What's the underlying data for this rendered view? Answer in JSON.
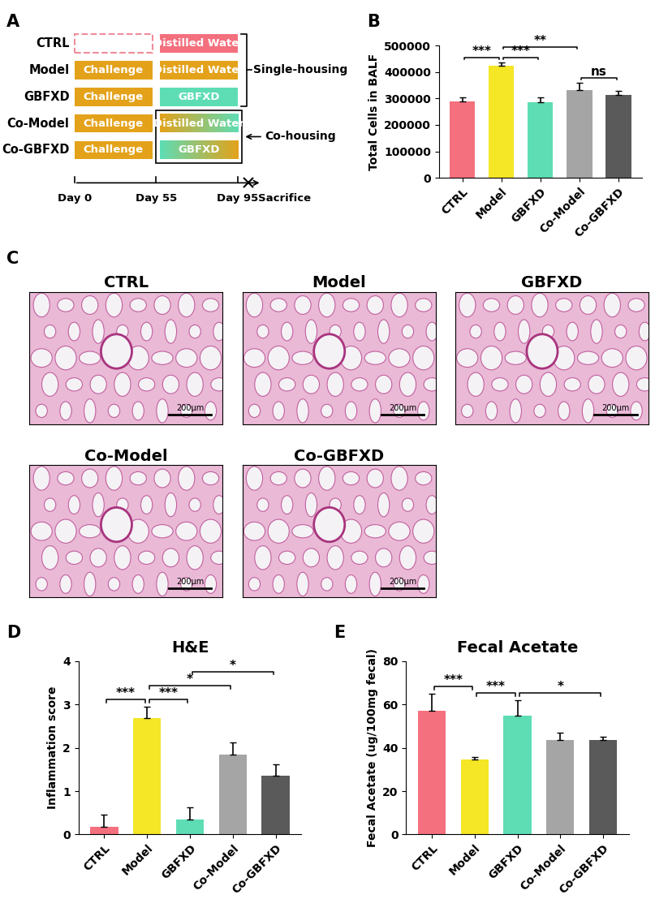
{
  "panels": [
    "A",
    "B",
    "C",
    "D",
    "E"
  ],
  "diagram": {
    "rows": [
      {
        "label": "CTRL",
        "phase1": {
          "color": "#F08C9A",
          "line_style": "dashed"
        },
        "phase2": {
          "text": "Distilled Water",
          "color": "#F4707E"
        }
      },
      {
        "label": "Model",
        "phase1": {
          "text": "Challenge",
          "color": "#E3A21A"
        },
        "phase2": {
          "text": "Distilled Water",
          "color": "#E3A21A"
        }
      },
      {
        "label": "GBFXD",
        "phase1": {
          "text": "Challenge",
          "color": "#E3A21A"
        },
        "phase2": {
          "text": "GBFXD",
          "color": "#5EDDB5"
        }
      },
      {
        "label": "Co-Model",
        "phase1": {
          "text": "Challenge",
          "color": "#E3A21A"
        },
        "phase2": {
          "text": "Distilled Water",
          "colors": [
            "#E3A21A",
            "#5EDDB5"
          ]
        }
      },
      {
        "label": "Co-GBFXD",
        "phase1": {
          "text": "Challenge",
          "color": "#E3A21A"
        },
        "phase2": {
          "text": "GBFXD",
          "colors": [
            "#5EDDB5",
            "#E3A21A"
          ]
        }
      }
    ],
    "single_housing": {
      "label": "Single-housing",
      "rows": [
        "CTRL",
        "Model",
        "GBFXD"
      ]
    },
    "co_housing": {
      "label": "Co-housing",
      "rows": [
        "Co-Model",
        "Co-GBFXD"
      ]
    },
    "timeline": {
      "ticks": [
        "Day 0",
        "Day 55",
        "Day 95"
      ],
      "end": "Sacrifice"
    }
  },
  "images": {
    "titles": [
      "CTRL",
      "Model",
      "GBFXD",
      "Co-Model",
      "Co-GBFXD"
    ],
    "scale_bar": "200μm"
  },
  "chart_data": [
    {
      "type": "bar",
      "y_label": "Total Cells in BALF",
      "categories": [
        "CTRL",
        "Model",
        "GBFXD",
        "Co-Model",
        "Co-GBFXD"
      ],
      "values": [
        288000,
        425000,
        285000,
        333000,
        313000
      ],
      "errors": [
        17000,
        10000,
        18000,
        25000,
        17000
      ],
      "colors": [
        "#F4707E",
        "#F5E626",
        "#5EDDB5",
        "#A5A5A5",
        "#5A5A5A"
      ],
      "ylim": [
        0,
        500000
      ],
      "yticks": [
        0,
        100000,
        200000,
        300000,
        400000,
        500000
      ],
      "significance": [
        {
          "from": "CTRL",
          "to": "Model",
          "label": "***"
        },
        {
          "from": "Model",
          "to": "GBFXD",
          "label": "***"
        },
        {
          "from": "Model",
          "to": "Co-Model",
          "label": "**"
        },
        {
          "from": "Co-Model",
          "to": "Co-GBFXD",
          "label": "ns"
        }
      ]
    },
    {
      "type": "bar",
      "title": "H&E",
      "y_label": "Inflammation score",
      "categories": [
        "CTRL",
        "Model",
        "GBFXD",
        "Co-Model",
        "Co-GBFXD"
      ],
      "values": [
        0.18,
        2.68,
        0.35,
        1.85,
        1.35
      ],
      "errors": [
        0.27,
        0.27,
        0.27,
        0.27,
        0.27
      ],
      "colors": [
        "#F4707E",
        "#F5E626",
        "#5EDDB5",
        "#A5A5A5",
        "#5A5A5A"
      ],
      "ylim": [
        0,
        4
      ],
      "yticks": [
        0,
        1,
        2,
        3,
        4
      ],
      "significance": [
        {
          "from": "CTRL",
          "to": "Model",
          "label": "***"
        },
        {
          "from": "Model",
          "to": "GBFXD",
          "label": "***"
        },
        {
          "from": "Model",
          "to": "Co-Model",
          "label": "*"
        },
        {
          "from": "GBFXD",
          "to": "Co-GBFXD",
          "label": "*"
        }
      ]
    },
    {
      "type": "bar",
      "title": "Fecal Acetate",
      "y_label": "Fecal Acetate (ug/100mg fecal)",
      "categories": [
        "CTRL",
        "Model",
        "GBFXD",
        "Co-Model",
        "Co-GBFXD"
      ],
      "values": [
        57,
        34.5,
        55,
        43.5,
        43.5
      ],
      "errors": [
        8,
        1.3,
        7,
        3.5,
        1.8
      ],
      "colors": [
        "#F4707E",
        "#F5E626",
        "#5EDDB5",
        "#A5A5A5",
        "#5A5A5A"
      ],
      "ylim": [
        0,
        80
      ],
      "yticks": [
        0,
        20,
        40,
        60,
        80
      ],
      "significance": [
        {
          "from": "CTRL",
          "to": "Model",
          "label": "***"
        },
        {
          "from": "Model",
          "to": "GBFXD",
          "label": "***"
        },
        {
          "from": "GBFXD",
          "to": "Co-GBFXD",
          "label": "*"
        }
      ]
    }
  ]
}
